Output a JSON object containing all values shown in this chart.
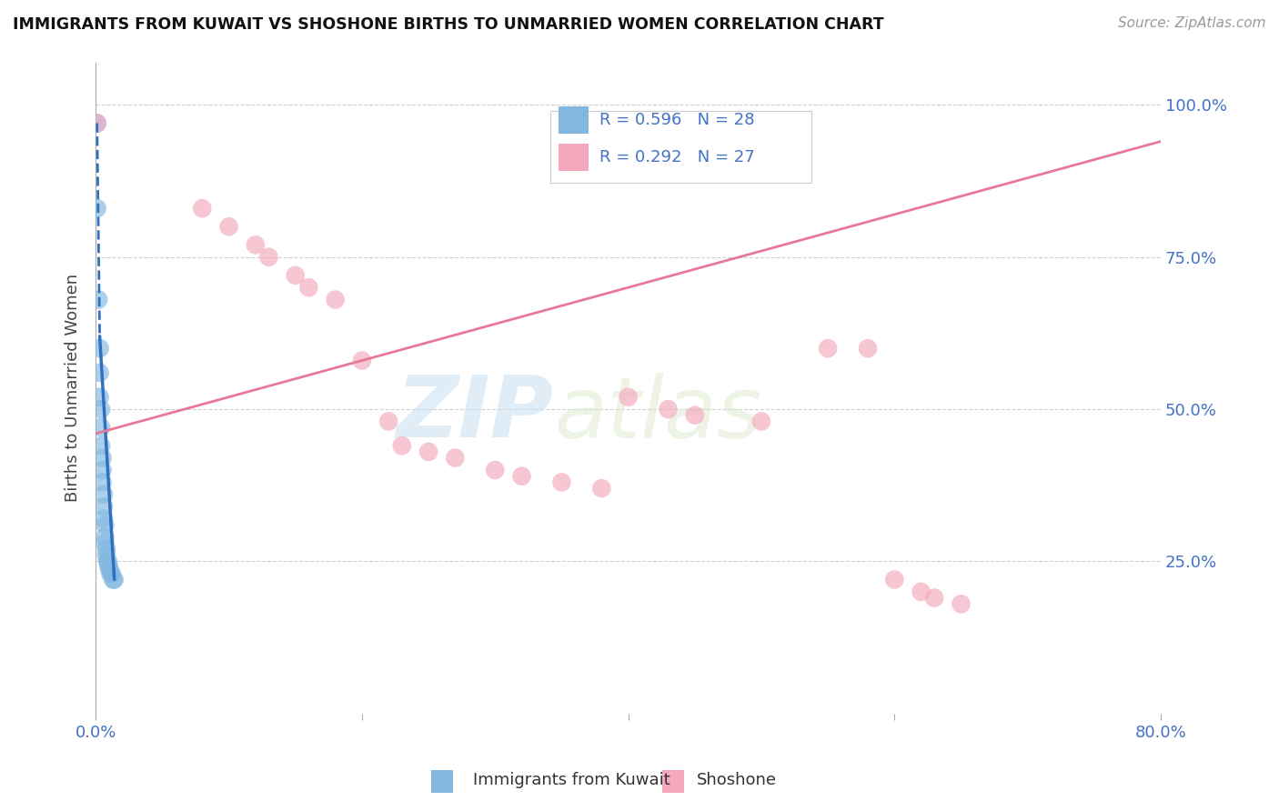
{
  "title": "IMMIGRANTS FROM KUWAIT VS SHOSHONE BIRTHS TO UNMARRIED WOMEN CORRELATION CHART",
  "source": "Source: ZipAtlas.com",
  "ylabel": "Births to Unmarried Women",
  "ytick_positions": [
    0.0,
    0.25,
    0.5,
    0.75,
    1.0
  ],
  "ytick_labels": [
    "",
    "25.0%",
    "50.0%",
    "75.0%",
    "100.0%"
  ],
  "xtick_positions": [
    0.0,
    0.2,
    0.4,
    0.6,
    0.8
  ],
  "xtick_labels": [
    "0.0%",
    "",
    "",
    "",
    "80.0%"
  ],
  "xlim": [
    0.0,
    0.8
  ],
  "ylim": [
    0.0,
    1.07
  ],
  "legend_r_blue": "R = 0.596",
  "legend_n_blue": "N = 28",
  "legend_r_pink": "R = 0.292",
  "legend_n_pink": "N = 27",
  "legend_label_blue": "Immigrants from Kuwait",
  "legend_label_pink": "Shoshone",
  "color_blue": "#82b8e0",
  "color_pink": "#f4a8bc",
  "color_blue_line": "#3070c0",
  "color_pink_line": "#e87898",
  "blue_scatter_x": [
    0.001,
    0.001,
    0.002,
    0.003,
    0.003,
    0.003,
    0.004,
    0.004,
    0.004,
    0.005,
    0.005,
    0.005,
    0.006,
    0.006,
    0.006,
    0.007,
    0.007,
    0.007,
    0.008,
    0.008,
    0.009,
    0.009,
    0.01,
    0.01,
    0.011,
    0.012,
    0.013,
    0.014
  ],
  "blue_scatter_y": [
    0.97,
    0.83,
    0.68,
    0.6,
    0.56,
    0.52,
    0.5,
    0.47,
    0.44,
    0.42,
    0.4,
    0.38,
    0.36,
    0.34,
    0.32,
    0.31,
    0.29,
    0.28,
    0.27,
    0.26,
    0.25,
    0.25,
    0.24,
    0.24,
    0.23,
    0.23,
    0.22,
    0.22
  ],
  "pink_scatter_x": [
    0.001,
    0.1,
    0.12,
    0.13,
    0.15,
    0.16,
    0.18,
    0.2,
    0.22,
    0.23,
    0.25,
    0.27,
    0.3,
    0.32,
    0.35,
    0.38,
    0.4,
    0.43,
    0.45,
    0.5,
    0.55,
    0.58,
    0.6,
    0.62,
    0.63,
    0.65,
    0.08
  ],
  "pink_scatter_y": [
    0.97,
    0.8,
    0.77,
    0.75,
    0.72,
    0.7,
    0.68,
    0.58,
    0.48,
    0.44,
    0.43,
    0.42,
    0.4,
    0.39,
    0.38,
    0.37,
    0.52,
    0.5,
    0.49,
    0.48,
    0.6,
    0.6,
    0.22,
    0.2,
    0.19,
    0.18,
    0.83
  ],
  "blue_solid_line_x": [
    0.003,
    0.014
  ],
  "blue_solid_line_y": [
    0.62,
    0.22
  ],
  "blue_dashed_line_x": [
    0.001,
    0.003
  ],
  "blue_dashed_line_y": [
    0.97,
    0.62
  ],
  "pink_line_x": [
    0.0,
    0.8
  ],
  "pink_line_y": [
    0.46,
    0.94
  ],
  "watermark_zip": "ZIP",
  "watermark_atlas": "atlas",
  "background_color": "#ffffff",
  "grid_color": "#d0d0d0",
  "spine_color": "#aaaaaa"
}
